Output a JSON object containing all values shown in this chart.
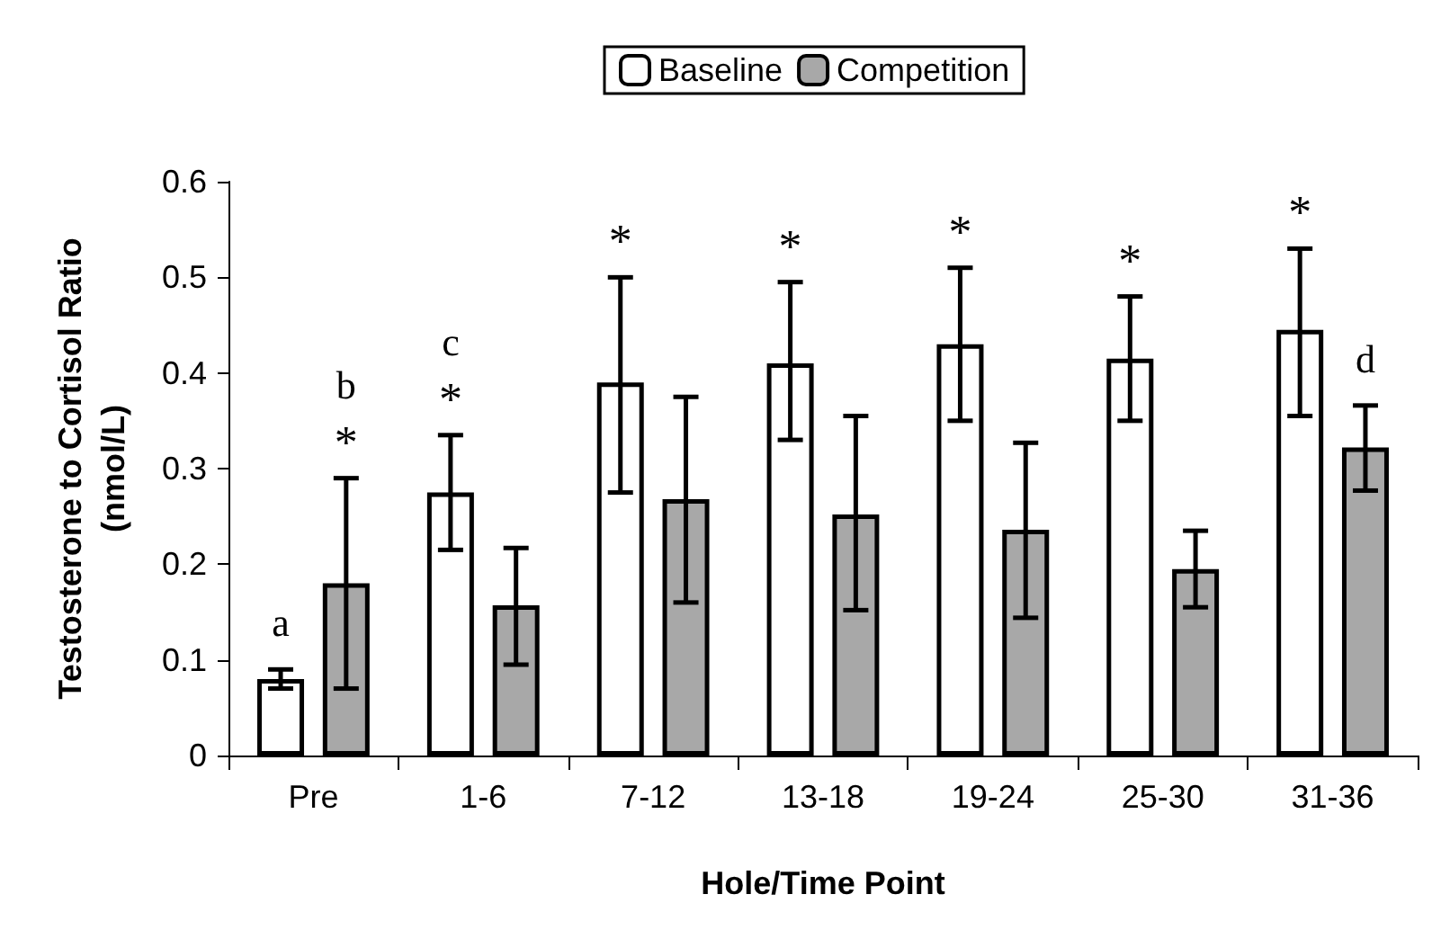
{
  "chart_data": {
    "type": "bar",
    "xlabel": "Hole/Time Point",
    "ylabel": "Testosterone to Cortisol Ratio\n(nmol/L)",
    "categories": [
      "Pre",
      "1-6",
      "7-12",
      "13-18",
      "19-24",
      "25-30",
      "31-36"
    ],
    "series": [
      {
        "name": "Baseline",
        "color": "#ffffff",
        "values": [
          0.08,
          0.275,
          0.39,
          0.41,
          0.43,
          0.415,
          0.445
        ],
        "errors": [
          [
            0.07,
            0.09
          ],
          [
            0.215,
            0.335
          ],
          [
            0.275,
            0.5
          ],
          [
            0.33,
            0.495
          ],
          [
            0.35,
            0.51
          ],
          [
            0.35,
            0.48
          ],
          [
            0.355,
            0.53
          ]
        ]
      },
      {
        "name": "Competition",
        "color": "#a8a8a8",
        "values": [
          0.18,
          0.157,
          0.268,
          0.252,
          0.236,
          0.195,
          0.322
        ],
        "errors": [
          [
            0.07,
            0.29
          ],
          [
            0.095,
            0.217
          ],
          [
            0.16,
            0.375
          ],
          [
            0.152,
            0.355
          ],
          [
            0.144,
            0.327
          ],
          [
            0.155,
            0.235
          ],
          [
            0.277,
            0.366
          ]
        ]
      }
    ],
    "ylim": [
      0,
      0.6
    ],
    "yticks": [
      0,
      0.1,
      0.2,
      0.3,
      0.4,
      0.5,
      0.6
    ],
    "grid": false,
    "legend": "top",
    "annotations": [
      "a",
      "*",
      "b",
      "*",
      "c",
      "*",
      "*",
      "*",
      "*",
      "*",
      "d"
    ]
  }
}
